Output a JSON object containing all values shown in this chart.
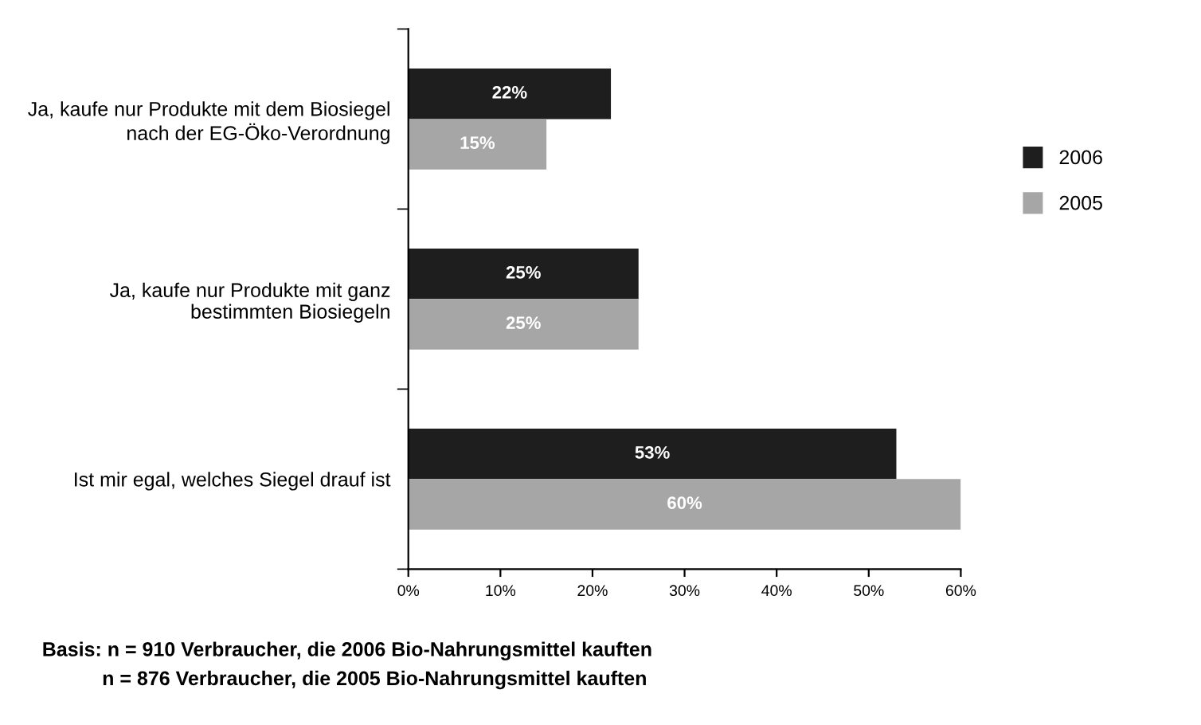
{
  "chart_data": {
    "type": "bar",
    "orientation": "horizontal",
    "categories": [
      "Ja, kaufe nur Produkte mit dem Biosiegel\nnach der EG-Öko-Verordnung",
      "Ja, kaufe nur Produkte mit ganz\nbestimmten Biosiegeln",
      "Ist mir egal, welches Siegel drauf ist"
    ],
    "series": [
      {
        "name": "2006",
        "color": "#1e1e1e",
        "values": [
          22,
          25,
          53
        ],
        "value_labels": [
          "22%",
          "25%",
          "53%"
        ]
      },
      {
        "name": "2005",
        "color": "#a6a6a6",
        "values": [
          15,
          25,
          60
        ],
        "value_labels": [
          "15%",
          "25%",
          "60%"
        ]
      }
    ],
    "xlim": [
      0,
      60
    ],
    "xticks": [
      {
        "value": 0,
        "label": "0%"
      },
      {
        "value": 10,
        "label": "10%"
      },
      {
        "value": 20,
        "label": "20%"
      },
      {
        "value": 30,
        "label": "30%"
      },
      {
        "value": 40,
        "label": "40%"
      },
      {
        "value": 50,
        "label": "50%"
      },
      {
        "value": 60,
        "label": "60%"
      }
    ],
    "legend": "right",
    "grid": false,
    "annotations": [
      "Basis: n = 910 Verbraucher, die 2006 Bio-Nahrungsmittel kauften",
      "n = 876 Verbraucher, die 2005 Bio-Nahrungsmittel kauften"
    ]
  }
}
